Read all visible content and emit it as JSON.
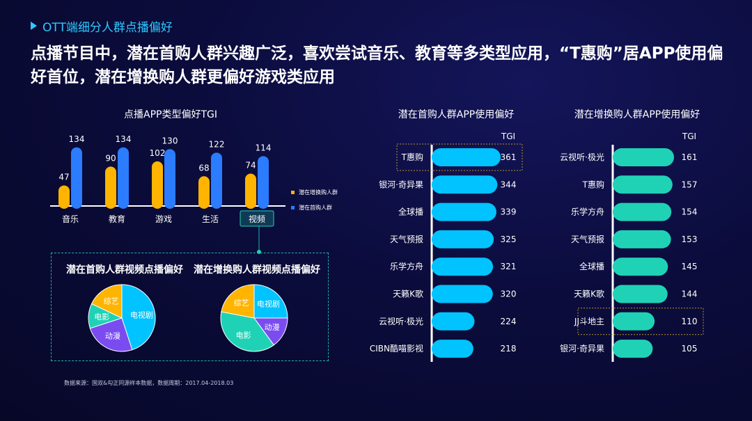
{
  "header": {
    "section_tag": "OTT端细分人群点播偏好",
    "headline": "点播节目中，潜在首购人群兴趣广泛，喜欢尝试音乐、教育等多类型应用，“T惠购”居APP使用偏好首位，潜在增换购人群更偏好游戏类应用"
  },
  "colors": {
    "orange": "#ffb400",
    "blue": "#2b7cff",
    "cyan": "#00c3ff",
    "teal": "#1fd2b6",
    "purple": "#7a4cf0",
    "highlight_border": "#b8962e"
  },
  "chart_data": [
    {
      "type": "bar",
      "title": "点播APP类型偏好TGI",
      "categories": [
        "音乐",
        "教育",
        "游戏",
        "生活",
        "视频"
      ],
      "series": [
        {
          "name": "潜在增换购人群",
          "values": [
            47,
            90,
            102,
            68,
            74
          ],
          "color": "#ffb400"
        },
        {
          "name": "潜在首购人群",
          "values": [
            134,
            134,
            130,
            122,
            114
          ],
          "color": "#2b7cff"
        }
      ],
      "ylim": [
        0,
        140
      ],
      "highlight_category": "视频",
      "legend_position": "right"
    },
    {
      "type": "pie",
      "title": "潜在首购人群视频点播偏好",
      "labels": [
        "电视剧",
        "动漫",
        "电影",
        "综艺"
      ],
      "values": [
        45,
        25,
        12,
        18
      ],
      "colors": [
        "#00c3ff",
        "#7a4cf0",
        "#1fd2b6",
        "#ffb400"
      ]
    },
    {
      "type": "pie",
      "title": "潜在增换购人群视频点播偏好",
      "labels": [
        "电视剧",
        "动漫",
        "电影",
        "综艺"
      ],
      "values": [
        25,
        15,
        38,
        22
      ],
      "colors": [
        "#00c3ff",
        "#7a4cf0",
        "#1fd2b6",
        "#ffb400"
      ]
    },
    {
      "type": "bar",
      "orientation": "horizontal",
      "title": "潜在首购人群APP使用偏好",
      "value_label": "TGI",
      "categories": [
        "T惠购",
        "银河·奇异果",
        "全球播",
        "天气预报",
        "乐学方舟",
        "天籁K歌",
        "云视听·极光",
        "CIBN酷喵影视"
      ],
      "values": [
        361,
        344,
        339,
        325,
        321,
        320,
        224,
        218
      ],
      "color": "#00c3ff",
      "highlight_category": "T惠购"
    },
    {
      "type": "bar",
      "orientation": "horizontal",
      "title": "潜在增换购人群APP使用偏好",
      "value_label": "TGI",
      "categories": [
        "云视听·极光",
        "T惠购",
        "乐学方舟",
        "天气预报",
        "全球播",
        "天籁K歌",
        "JJ斗地主",
        "银河·奇异果"
      ],
      "values": [
        161,
        157,
        154,
        153,
        145,
        144,
        110,
        105
      ],
      "color": "#1fd2b6",
      "highlight_category": "JJ斗地主"
    }
  ],
  "footer": {
    "source": "数据来源：国双&勾正同源样本数据，数据周期：2017.04-2018.03"
  }
}
